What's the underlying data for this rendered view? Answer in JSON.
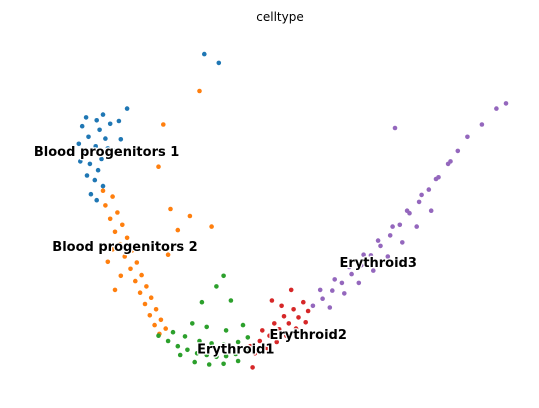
{
  "chart_data": {
    "type": "scatter",
    "title": "celltype",
    "xlabel": "",
    "ylabel": "",
    "grid": false,
    "axes_visible": false,
    "legend": "on data",
    "series": [
      {
        "name": "Blood progenitors 1",
        "color": "#1f77b4",
        "label_pos": [
          0.62,
          6.7
        ],
        "points_estimated": [
          [
            1.7,
            7.8
          ],
          [
            1.92,
            7.72
          ],
          [
            2.05,
            7.88
          ],
          [
            1.62,
            7.55
          ],
          [
            1.98,
            7.45
          ],
          [
            2.2,
            7.62
          ],
          [
            1.75,
            7.25
          ],
          [
            2.1,
            7.2
          ],
          [
            1.55,
            7.05
          ],
          [
            1.9,
            6.98
          ],
          [
            2.15,
            6.92
          ],
          [
            1.68,
            6.78
          ],
          [
            2.02,
            6.62
          ],
          [
            1.78,
            6.48
          ],
          [
            1.95,
            6.3
          ],
          [
            1.72,
            6.15
          ],
          [
            1.88,
            6.02
          ],
          [
            2.05,
            5.85
          ],
          [
            1.8,
            5.62
          ],
          [
            1.92,
            5.45
          ],
          [
            2.55,
            8.05
          ],
          [
            2.38,
            7.7
          ],
          [
            2.42,
            7.18
          ],
          [
            1.58,
            6.55
          ],
          [
            2.28,
            6.85
          ],
          [
            4.15,
            9.6
          ],
          [
            4.45,
            9.35
          ]
        ]
      },
      {
        "name": "Blood progenitors 2",
        "color": "#ff7f0e",
        "label_pos": [
          1.0,
          4.0
        ],
        "points_estimated": [
          [
            2.05,
            5.72
          ],
          [
            2.25,
            5.55
          ],
          [
            2.1,
            5.3
          ],
          [
            2.35,
            5.1
          ],
          [
            2.2,
            4.92
          ],
          [
            2.45,
            4.75
          ],
          [
            2.3,
            4.55
          ],
          [
            2.55,
            4.38
          ],
          [
            2.4,
            4.2
          ],
          [
            2.65,
            4.02
          ],
          [
            2.5,
            3.85
          ],
          [
            2.75,
            3.68
          ],
          [
            2.62,
            3.5
          ],
          [
            2.85,
            3.32
          ],
          [
            2.72,
            3.15
          ],
          [
            2.95,
            3.0
          ],
          [
            2.82,
            2.82
          ],
          [
            3.05,
            2.68
          ],
          [
            2.92,
            2.5
          ],
          [
            3.15,
            2.35
          ],
          [
            3.02,
            2.18
          ],
          [
            3.25,
            2.05
          ],
          [
            3.12,
            1.9
          ],
          [
            3.35,
            1.8
          ],
          [
            3.22,
            1.65
          ],
          [
            2.25,
            4.05
          ],
          [
            2.15,
            3.7
          ],
          [
            2.42,
            3.3
          ],
          [
            3.4,
            3.9
          ],
          [
            3.6,
            4.6
          ],
          [
            3.45,
            5.2
          ],
          [
            3.2,
            6.4
          ],
          [
            3.85,
            5.0
          ],
          [
            4.3,
            4.7
          ],
          [
            4.05,
            8.55
          ],
          [
            3.3,
            7.6
          ],
          [
            2.3,
            2.9
          ]
        ]
      },
      {
        "name": "Erythroid1",
        "color": "#2ca02c",
        "label_pos": [
          4.0,
          1.1
        ],
        "points_estimated": [
          [
            3.2,
            1.6
          ],
          [
            3.4,
            1.45
          ],
          [
            3.6,
            1.3
          ],
          [
            3.8,
            1.2
          ],
          [
            4.0,
            1.1
          ],
          [
            4.2,
            1.05
          ],
          [
            4.4,
            1.0
          ],
          [
            4.6,
            1.02
          ],
          [
            4.8,
            1.08
          ],
          [
            5.0,
            1.18
          ],
          [
            3.5,
            1.7
          ],
          [
            3.75,
            1.58
          ],
          [
            4.05,
            1.45
          ],
          [
            4.3,
            1.38
          ],
          [
            4.55,
            1.35
          ],
          [
            4.85,
            1.42
          ],
          [
            5.05,
            1.55
          ],
          [
            3.65,
            1.05
          ],
          [
            3.95,
            0.85
          ],
          [
            4.25,
            0.78
          ],
          [
            4.55,
            0.8
          ],
          [
            4.85,
            0.88
          ],
          [
            3.9,
            1.95
          ],
          [
            4.2,
            1.85
          ],
          [
            4.6,
            1.75
          ],
          [
            4.95,
            1.9
          ],
          [
            4.1,
            2.55
          ],
          [
            4.7,
            2.6
          ],
          [
            4.4,
            3.0
          ],
          [
            4.55,
            3.3
          ]
        ]
      },
      {
        "name": "Erythroid2",
        "color": "#d62728",
        "label_pos": [
          5.5,
          1.5
        ],
        "points_estimated": [
          [
            5.1,
            1.3
          ],
          [
            5.3,
            1.45
          ],
          [
            5.5,
            1.6
          ],
          [
            5.7,
            1.78
          ],
          [
            5.9,
            1.95
          ],
          [
            6.1,
            2.12
          ],
          [
            6.3,
            2.3
          ],
          [
            5.2,
            1.1
          ],
          [
            5.45,
            1.25
          ],
          [
            5.65,
            1.42
          ],
          [
            5.85,
            1.6
          ],
          [
            6.05,
            1.8
          ],
          [
            6.25,
            1.98
          ],
          [
            5.35,
            1.75
          ],
          [
            5.6,
            1.95
          ],
          [
            5.8,
            2.15
          ],
          [
            6.0,
            2.35
          ],
          [
            6.2,
            2.55
          ],
          [
            5.55,
            2.6
          ],
          [
            5.95,
            2.9
          ],
          [
            5.75,
            2.45
          ],
          [
            5.15,
            0.7
          ]
        ]
      },
      {
        "name": "Erythroid3",
        "color": "#9467bd",
        "label_pos": [
          6.95,
          3.55
        ],
        "points_estimated": [
          [
            6.4,
            2.45
          ],
          [
            6.6,
            2.65
          ],
          [
            6.8,
            2.88
          ],
          [
            7.0,
            3.1
          ],
          [
            7.2,
            3.35
          ],
          [
            7.4,
            3.6
          ],
          [
            7.6,
            3.88
          ],
          [
            7.8,
            4.15
          ],
          [
            8.0,
            4.45
          ],
          [
            8.2,
            4.75
          ],
          [
            8.4,
            5.08
          ],
          [
            8.6,
            5.4
          ],
          [
            8.8,
            5.75
          ],
          [
            9.0,
            6.1
          ],
          [
            9.2,
            6.48
          ],
          [
            9.4,
            6.85
          ],
          [
            9.6,
            7.25
          ],
          [
            6.55,
            2.9
          ],
          [
            6.85,
            3.2
          ],
          [
            7.15,
            3.55
          ],
          [
            7.45,
            3.9
          ],
          [
            7.75,
            4.3
          ],
          [
            8.05,
            4.7
          ],
          [
            8.35,
            5.15
          ],
          [
            8.65,
            5.6
          ],
          [
            8.95,
            6.05
          ],
          [
            9.25,
            6.55
          ],
          [
            7.05,
            2.8
          ],
          [
            7.35,
            3.1
          ],
          [
            7.65,
            3.45
          ],
          [
            7.95,
            3.85
          ],
          [
            8.25,
            4.25
          ],
          [
            8.55,
            4.7
          ],
          [
            8.85,
            5.15
          ],
          [
            9.9,
            7.6
          ],
          [
            10.2,
            8.05
          ],
          [
            10.4,
            8.2
          ],
          [
            8.1,
            7.5
          ],
          [
            6.75,
            2.4
          ]
        ]
      }
    ],
    "xlim": [
      0,
      11
    ],
    "ylim": [
      0,
      10
    ]
  }
}
